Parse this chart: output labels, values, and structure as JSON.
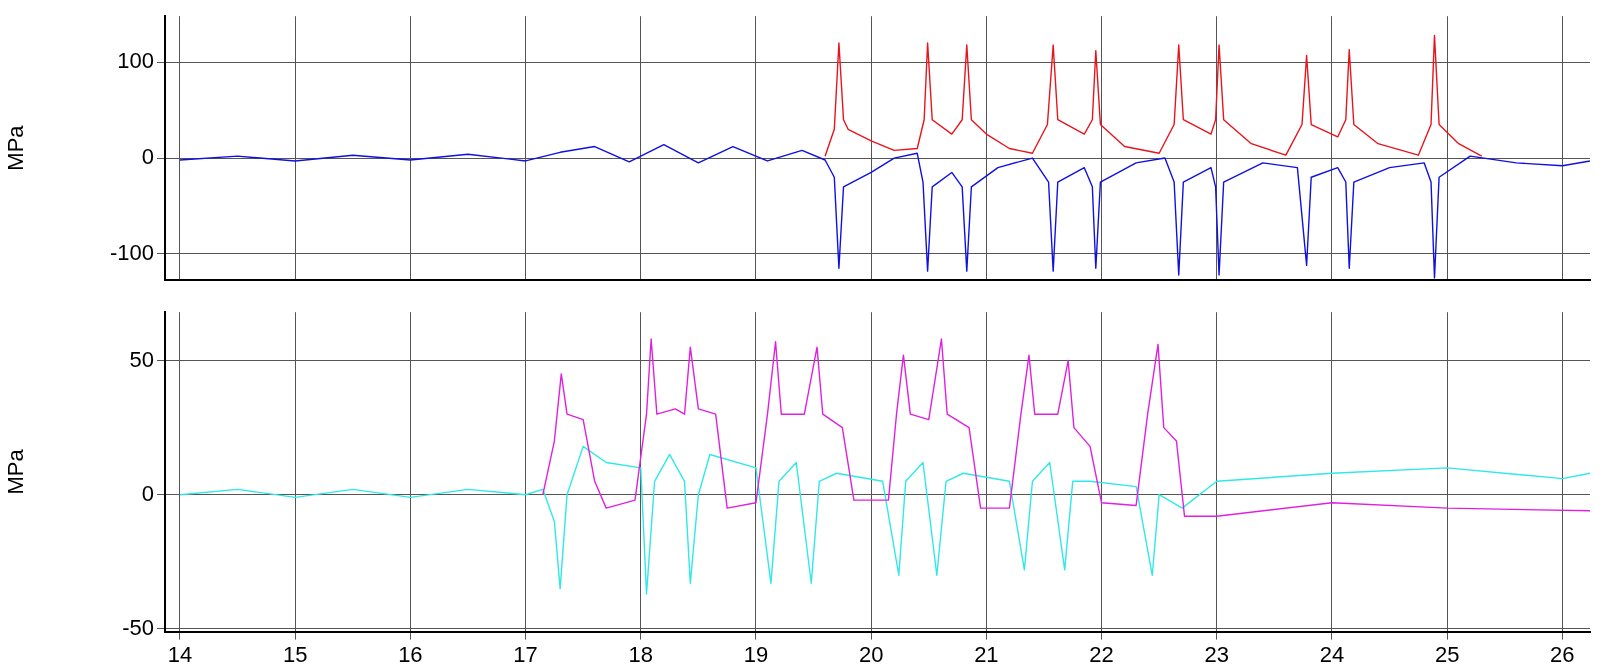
{
  "chart_data": [
    {
      "type": "line",
      "ylabel": "MPa",
      "xlim": [
        13.87,
        26.24
      ],
      "xticks": [
        14,
        15,
        16,
        17,
        18,
        19,
        20,
        21,
        22,
        23,
        24,
        25,
        26
      ],
      "ylim": [
        -127,
        148
      ],
      "yticks": [
        -100,
        0,
        100
      ],
      "grid": true,
      "legend": false,
      "tick_labels": "y",
      "series": [
        {
          "color": "#e8141c",
          "x": [
            19.6,
            19.68,
            19.72,
            19.76,
            19.8,
            20.0,
            20.2,
            20.4,
            20.46,
            20.49,
            20.53,
            20.7,
            20.79,
            20.83,
            20.87,
            21.0,
            21.2,
            21.4,
            21.53,
            21.58,
            21.62,
            21.85,
            21.92,
            21.95,
            21.99,
            22.2,
            22.5,
            22.63,
            22.67,
            22.71,
            22.95,
            22.99,
            23.02,
            23.06,
            23.3,
            23.6,
            23.74,
            23.78,
            23.82,
            24.05,
            24.12,
            24.15,
            24.19,
            24.4,
            24.75,
            24.86,
            24.89,
            24.93,
            25.1,
            25.3
          ],
          "values": [
            2,
            30,
            120,
            40,
            30,
            18,
            8,
            10,
            40,
            120,
            40,
            25,
            40,
            118,
            40,
            25,
            10,
            5,
            35,
            118,
            40,
            25,
            40,
            112,
            35,
            12,
            5,
            35,
            118,
            40,
            25,
            40,
            118,
            40,
            15,
            3,
            35,
            107,
            35,
            22,
            40,
            113,
            35,
            15,
            3,
            35,
            128,
            35,
            15,
            2
          ]
        },
        {
          "color": "#1010e0",
          "x": [
            14,
            14.5,
            15,
            15.5,
            16,
            16.5,
            17,
            17.3,
            17.6,
            17.9,
            18.2,
            18.5,
            18.8,
            19.1,
            19.4,
            19.6,
            19.68,
            19.72,
            19.76,
            20.0,
            20.2,
            20.4,
            20.45,
            20.49,
            20.53,
            20.7,
            20.79,
            20.83,
            20.87,
            21.1,
            21.4,
            21.54,
            21.58,
            21.62,
            21.85,
            21.92,
            21.95,
            21.99,
            22.3,
            22.55,
            22.63,
            22.67,
            22.71,
            22.95,
            22.99,
            23.02,
            23.06,
            23.4,
            23.7,
            23.78,
            23.82,
            24.05,
            24.12,
            24.15,
            24.19,
            24.5,
            24.8,
            24.86,
            24.89,
            24.93,
            25.2,
            25.6,
            26,
            26.24
          ],
          "values": [
            -2,
            2,
            -3,
            3,
            -2,
            4,
            -3,
            6,
            12,
            -4,
            14,
            -5,
            12,
            -3,
            8,
            -2,
            -20,
            -115,
            -30,
            -15,
            0,
            5,
            -25,
            -118,
            -30,
            -15,
            -30,
            -118,
            -30,
            -10,
            0,
            -25,
            -118,
            -25,
            -10,
            -30,
            -115,
            -25,
            -5,
            0,
            -25,
            -122,
            -25,
            -10,
            -30,
            -122,
            -25,
            -5,
            -10,
            -112,
            -20,
            -10,
            -25,
            -115,
            -25,
            -10,
            -5,
            -25,
            -125,
            -20,
            2,
            -5,
            -8,
            -3
          ]
        }
      ]
    },
    {
      "type": "line",
      "ylabel": "MPa",
      "xlim": [
        13.87,
        26.24
      ],
      "xticks": [
        14,
        15,
        16,
        17,
        18,
        19,
        20,
        21,
        22,
        23,
        24,
        25,
        26
      ],
      "ylim": [
        -51,
        68
      ],
      "yticks": [
        -50,
        0,
        50
      ],
      "grid": true,
      "legend": false,
      "series": [
        {
          "color": "#e020e0",
          "x": [
            17.15,
            17.25,
            17.31,
            17.36,
            17.5,
            17.6,
            17.7,
            17.95,
            18.05,
            18.09,
            18.14,
            18.3,
            18.38,
            18.43,
            18.5,
            18.65,
            18.75,
            19.0,
            19.1,
            19.17,
            19.22,
            19.42,
            19.53,
            19.58,
            19.75,
            19.85,
            20.15,
            20.22,
            20.28,
            20.34,
            20.5,
            20.61,
            20.66,
            20.85,
            20.95,
            21.2,
            21.3,
            21.37,
            21.42,
            21.62,
            21.71,
            21.76,
            21.9,
            22.0,
            22.3,
            22.4,
            22.49,
            22.54,
            22.65,
            22.72,
            23.0,
            24.0,
            25.0,
            26.24
          ],
          "values": [
            0,
            20,
            45,
            30,
            28,
            5,
            -5,
            -2,
            30,
            58,
            30,
            32,
            30,
            55,
            32,
            30,
            -5,
            -3,
            30,
            57,
            30,
            30,
            55,
            30,
            25,
            -2,
            -2,
            30,
            52,
            30,
            28,
            58,
            30,
            25,
            -5,
            -5,
            30,
            52,
            30,
            30,
            50,
            25,
            18,
            -3,
            -4,
            30,
            56,
            25,
            20,
            -8,
            -8,
            -3,
            -5,
            -6
          ]
        },
        {
          "color": "#30e8e8",
          "x": [
            14,
            14.5,
            15,
            15.5,
            16,
            16.5,
            17.0,
            17.15,
            17.25,
            17.3,
            17.36,
            17.5,
            17.7,
            18.0,
            18.05,
            18.12,
            18.25,
            18.38,
            18.43,
            18.5,
            18.6,
            19.0,
            19.13,
            19.2,
            19.35,
            19.48,
            19.55,
            19.7,
            20.1,
            20.24,
            20.3,
            20.45,
            20.57,
            20.65,
            20.8,
            21.2,
            21.33,
            21.4,
            21.55,
            21.68,
            21.75,
            21.9,
            22.3,
            22.44,
            22.5,
            22.7,
            23.0,
            24.0,
            25.0,
            26.0,
            26.24
          ],
          "values": [
            0,
            2,
            -1,
            2,
            -1,
            2,
            0,
            2,
            -10,
            -35,
            0,
            18,
            12,
            10,
            -37,
            5,
            15,
            5,
            -33,
            0,
            15,
            10,
            -33,
            5,
            12,
            -33,
            5,
            8,
            5,
            -30,
            5,
            12,
            -30,
            5,
            8,
            5,
            -28,
            5,
            12,
            -28,
            5,
            5,
            3,
            -30,
            0,
            -5,
            5,
            8,
            10,
            6,
            8
          ]
        }
      ]
    }
  ]
}
